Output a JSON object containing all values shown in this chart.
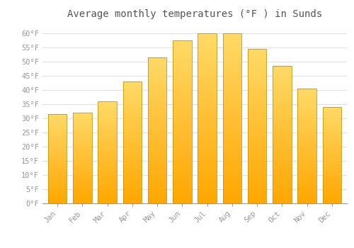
{
  "months": [
    "Jan",
    "Feb",
    "Mar",
    "Apr",
    "May",
    "Jun",
    "Jul",
    "Aug",
    "Sep",
    "Oct",
    "Nov",
    "Dec"
  ],
  "values": [
    31.5,
    32.0,
    36.0,
    43.0,
    51.5,
    57.5,
    60.0,
    60.0,
    54.5,
    48.5,
    40.5,
    34.0
  ],
  "bar_color_top": "#FFD966",
  "bar_color_bottom": "#FFA500",
  "bar_edge_color": "#C8960C",
  "title": "Average monthly temperatures (°F ) in Sunds",
  "title_fontsize": 10,
  "ylim": [
    0,
    63
  ],
  "yticks": [
    0,
    5,
    10,
    15,
    20,
    25,
    30,
    35,
    40,
    45,
    50,
    55,
    60
  ],
  "ytick_labels": [
    "0°F",
    "5°F",
    "10°F",
    "15°F",
    "20°F",
    "25°F",
    "30°F",
    "35°F",
    "40°F",
    "45°F",
    "50°F",
    "55°F",
    "60°F"
  ],
  "background_color": "#ffffff",
  "plot_bg_color": "#ffffff",
  "grid_color": "#e0e0e0",
  "tick_color": "#999999",
  "label_color": "#999999",
  "title_color": "#555555",
  "font_family": "monospace",
  "bar_width": 0.75
}
